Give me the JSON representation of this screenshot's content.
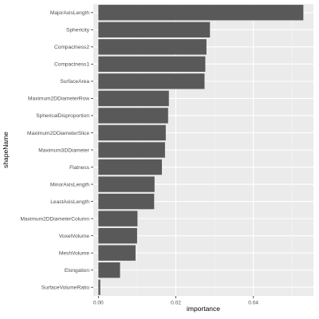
{
  "chart_data": {
    "type": "bar",
    "orientation": "horizontal",
    "title": "",
    "xlabel": "importance",
    "ylabel": "shapeName",
    "categories": [
      "MajorAxisLength",
      "Sphericity",
      "Compactness2",
      "Compactness1",
      "SurfaceArea",
      "Maximum2DDiameterRow",
      "SphericalDisproportion",
      "Maximum2DDiameterSlice",
      "Maximum3DDiameter",
      "Flatness",
      "MinorAxisLength",
      "LeastAxisLength",
      "Maximum2DDiameterColumn",
      "VoxelVolume",
      "MeshVolume",
      "Elongation",
      "SurfaceVolumeRatio"
    ],
    "values": [
      0.0529,
      0.0288,
      0.0279,
      0.0276,
      0.0274,
      0.0182,
      0.018,
      0.0174,
      0.0172,
      0.0164,
      0.0145,
      0.0144,
      0.0101,
      0.01,
      0.0096,
      0.0056,
      0.0005
    ],
    "xlim": [
      -0.0013,
      0.0555
    ],
    "xticks": [
      0.0,
      0.02,
      0.04
    ],
    "xtick_labels": [
      "0.00",
      "0.02",
      "0.04"
    ],
    "grid": true,
    "colors": {
      "bar": "#595959",
      "panel_background": "#ebebeb",
      "grid_major": "#ffffff",
      "grid_minor": "#f5f5f5",
      "tick_text": "#4d4d4d",
      "tick_mark": "#333333",
      "axis_title": "#000000"
    }
  }
}
